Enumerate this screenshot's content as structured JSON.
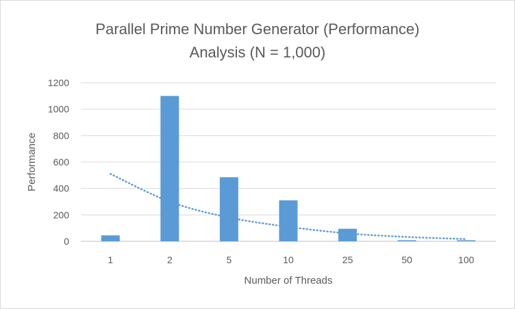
{
  "chart_data": {
    "type": "bar",
    "title_line1": "Parallel Prime Number Generator (Performance)",
    "title_line2": "Analysis (N = 1,000)",
    "xlabel": "Number of Threads",
    "ylabel": "Performance",
    "categories": [
      "1",
      "2",
      "5",
      "10",
      "25",
      "50",
      "100"
    ],
    "values": [
      45,
      1100,
      485,
      310,
      95,
      8,
      8
    ],
    "ylim": [
      0,
      1200
    ],
    "yticks": [
      0,
      200,
      400,
      600,
      800,
      1000,
      1200
    ],
    "grid": true,
    "bar_color": "#5b9bd5",
    "trendline": {
      "type": "power",
      "style": "dotted",
      "values": [
        510,
        300,
        180,
        110,
        60,
        33,
        17
      ]
    }
  }
}
